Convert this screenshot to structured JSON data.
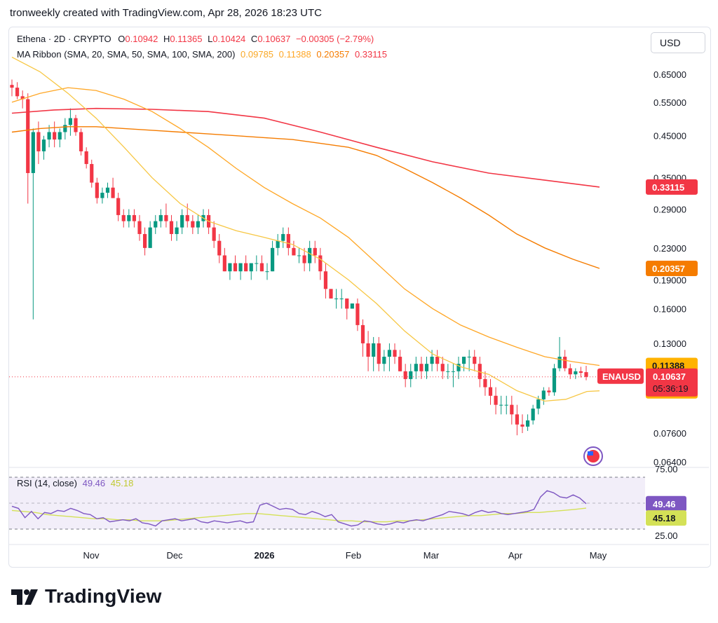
{
  "header": {
    "text": "tronweekly created with TradingView.com, Apr 28, 2026 18:23 UTC"
  },
  "legend": {
    "symbol": "Ethena · 2D · CRYPTO",
    "o_label": "O",
    "o_value": "0.10942",
    "h_label": "H",
    "h_value": "0.11365",
    "l_label": "L",
    "l_value": "0.10424",
    "c_label": "C",
    "c_value": "0.10637",
    "change": "−0.00305 (−2.79%)",
    "ma_title": "MA Ribbon (SMA, 20, SMA, 50, SMA, 100, SMA, 200)",
    "ma_values": [
      "0.09785",
      "0.11388",
      "0.20357",
      "0.33115"
    ],
    "rsi_title": "RSI (14, close)",
    "rsi_value": "49.46",
    "rsi_ma_value": "45.18"
  },
  "currency_button": "USD",
  "branding": "TradingView",
  "colors": {
    "up": "#089981",
    "down": "#f23645",
    "sma20": "#f7c744",
    "sma50": "#ffa726",
    "sma100": "#f57c00",
    "sma200": "#f23645",
    "rsi": "#7e57c2",
    "rsi_ma": "#d4e157"
  },
  "chart_data": {
    "type": "candlestick",
    "price_scale": "log",
    "price_ticks": [
      "0.65000",
      "0.55000",
      "0.45000",
      "0.35000",
      "0.29000",
      "0.23000",
      "0.19000",
      "0.16000",
      "0.13000",
      "0.11388",
      "0.09785",
      "0.07600",
      "0.06400"
    ],
    "price_axis_labels": [
      "0.65000",
      "0.55000",
      "0.45000",
      "0.35000",
      "0.29000",
      "0.23000",
      "0.19000",
      "0.16000",
      "0.13000",
      "0.07600",
      "0.06400"
    ],
    "time_labels": [
      "Nov",
      "Dec",
      "2026",
      "Feb",
      "Mar",
      "Apr",
      "May"
    ],
    "price_tags": [
      {
        "value": "0.33115",
        "price": 0.33115,
        "color": "#f23645",
        "text_color": "#ffffff"
      },
      {
        "value": "0.20357",
        "price": 0.20357,
        "color": "#f57c00",
        "text_color": "#ffffff"
      },
      {
        "value": "0.11388",
        "price": 0.11388,
        "color": "#ffb300",
        "text_color": "#131722"
      },
      {
        "value": "0.09785",
        "price": 0.09785,
        "color": "#ffb300",
        "text_color": "#131722"
      }
    ],
    "last_price": {
      "symbol": "ENAUSD",
      "value": "0.10637",
      "countdown": "05:36:19",
      "price": 0.10637
    },
    "candles": [
      [
        0.61,
        0.63,
        0.57,
        0.6
      ],
      [
        0.6,
        0.62,
        0.56,
        0.57
      ],
      [
        0.57,
        0.59,
        0.53,
        0.56
      ],
      [
        0.56,
        0.58,
        0.3,
        0.36
      ],
      [
        0.36,
        0.47,
        0.15,
        0.46
      ],
      [
        0.46,
        0.49,
        0.38,
        0.41
      ],
      [
        0.41,
        0.45,
        0.39,
        0.44
      ],
      [
        0.44,
        0.48,
        0.42,
        0.46
      ],
      [
        0.46,
        0.49,
        0.42,
        0.44
      ],
      [
        0.44,
        0.47,
        0.42,
        0.46
      ],
      [
        0.46,
        0.5,
        0.44,
        0.48
      ],
      [
        0.48,
        0.53,
        0.45,
        0.5
      ],
      [
        0.5,
        0.51,
        0.45,
        0.46
      ],
      [
        0.46,
        0.47,
        0.4,
        0.41
      ],
      [
        0.41,
        0.42,
        0.37,
        0.38
      ],
      [
        0.38,
        0.39,
        0.33,
        0.34
      ],
      [
        0.34,
        0.35,
        0.3,
        0.31
      ],
      [
        0.31,
        0.33,
        0.3,
        0.32
      ],
      [
        0.32,
        0.34,
        0.31,
        0.33
      ],
      [
        0.33,
        0.35,
        0.31,
        0.31
      ],
      [
        0.31,
        0.32,
        0.27,
        0.28
      ],
      [
        0.28,
        0.29,
        0.26,
        0.27
      ],
      [
        0.27,
        0.29,
        0.26,
        0.28
      ],
      [
        0.28,
        0.29,
        0.26,
        0.27
      ],
      [
        0.27,
        0.28,
        0.24,
        0.25
      ],
      [
        0.25,
        0.26,
        0.22,
        0.23
      ],
      [
        0.23,
        0.27,
        0.23,
        0.26
      ],
      [
        0.26,
        0.28,
        0.25,
        0.27
      ],
      [
        0.27,
        0.29,
        0.26,
        0.28
      ],
      [
        0.28,
        0.3,
        0.26,
        0.27
      ],
      [
        0.27,
        0.28,
        0.24,
        0.25
      ],
      [
        0.25,
        0.27,
        0.24,
        0.26
      ],
      [
        0.26,
        0.29,
        0.25,
        0.28
      ],
      [
        0.28,
        0.3,
        0.26,
        0.27
      ],
      [
        0.27,
        0.28,
        0.25,
        0.26
      ],
      [
        0.26,
        0.28,
        0.25,
        0.27
      ],
      [
        0.27,
        0.29,
        0.26,
        0.28
      ],
      [
        0.28,
        0.29,
        0.25,
        0.26
      ],
      [
        0.26,
        0.27,
        0.23,
        0.24
      ],
      [
        0.24,
        0.25,
        0.21,
        0.22
      ],
      [
        0.22,
        0.23,
        0.2,
        0.2
      ],
      [
        0.2,
        0.21,
        0.19,
        0.21
      ],
      [
        0.21,
        0.22,
        0.2,
        0.2
      ],
      [
        0.2,
        0.21,
        0.19,
        0.21
      ],
      [
        0.21,
        0.22,
        0.2,
        0.2
      ],
      [
        0.2,
        0.21,
        0.19,
        0.21
      ],
      [
        0.21,
        0.22,
        0.2,
        0.21
      ],
      [
        0.21,
        0.22,
        0.2,
        0.2
      ],
      [
        0.2,
        0.21,
        0.19,
        0.2
      ],
      [
        0.2,
        0.24,
        0.2,
        0.23
      ],
      [
        0.23,
        0.25,
        0.22,
        0.24
      ],
      [
        0.24,
        0.26,
        0.23,
        0.25
      ],
      [
        0.25,
        0.26,
        0.22,
        0.23
      ],
      [
        0.23,
        0.24,
        0.22,
        0.22
      ],
      [
        0.22,
        0.23,
        0.21,
        0.22
      ],
      [
        0.22,
        0.23,
        0.2,
        0.21
      ],
      [
        0.21,
        0.24,
        0.2,
        0.23
      ],
      [
        0.23,
        0.24,
        0.21,
        0.22
      ],
      [
        0.22,
        0.23,
        0.19,
        0.2
      ],
      [
        0.2,
        0.21,
        0.17,
        0.18
      ],
      [
        0.18,
        0.18,
        0.17,
        0.17
      ],
      [
        0.17,
        0.18,
        0.16,
        0.17
      ],
      [
        0.17,
        0.18,
        0.16,
        0.17
      ],
      [
        0.17,
        0.17,
        0.15,
        0.16
      ],
      [
        0.16,
        0.165,
        0.16,
        0.165
      ],
      [
        0.165,
        0.17,
        0.14,
        0.145
      ],
      [
        0.145,
        0.15,
        0.12,
        0.13
      ],
      [
        0.13,
        0.14,
        0.11,
        0.12
      ],
      [
        0.12,
        0.135,
        0.11,
        0.13
      ],
      [
        0.13,
        0.135,
        0.11,
        0.115
      ],
      [
        0.115,
        0.125,
        0.11,
        0.12
      ],
      [
        0.12,
        0.13,
        0.11,
        0.125
      ],
      [
        0.125,
        0.13,
        0.115,
        0.12
      ],
      [
        0.12,
        0.125,
        0.11,
        0.11
      ],
      [
        0.11,
        0.115,
        0.1,
        0.105
      ],
      [
        0.105,
        0.115,
        0.1,
        0.11
      ],
      [
        0.11,
        0.12,
        0.105,
        0.115
      ],
      [
        0.115,
        0.12,
        0.105,
        0.11
      ],
      [
        0.11,
        0.12,
        0.105,
        0.115
      ],
      [
        0.115,
        0.125,
        0.11,
        0.12
      ],
      [
        0.12,
        0.125,
        0.11,
        0.115
      ],
      [
        0.115,
        0.12,
        0.105,
        0.11
      ],
      [
        0.11,
        0.115,
        0.105,
        0.11
      ],
      [
        0.11,
        0.115,
        0.1,
        0.11
      ],
      [
        0.11,
        0.12,
        0.105,
        0.115
      ],
      [
        0.115,
        0.12,
        0.11,
        0.12
      ],
      [
        0.12,
        0.125,
        0.11,
        0.12
      ],
      [
        0.12,
        0.125,
        0.11,
        0.115
      ],
      [
        0.115,
        0.12,
        0.1,
        0.105
      ],
      [
        0.105,
        0.11,
        0.095,
        0.1
      ],
      [
        0.1,
        0.105,
        0.09,
        0.095
      ],
      [
        0.095,
        0.1,
        0.085,
        0.09
      ],
      [
        0.09,
        0.095,
        0.085,
        0.09
      ],
      [
        0.09,
        0.095,
        0.085,
        0.09
      ],
      [
        0.09,
        0.095,
        0.08,
        0.085
      ],
      [
        0.085,
        0.09,
        0.075,
        0.08
      ],
      [
        0.08,
        0.085,
        0.076,
        0.079
      ],
      [
        0.079,
        0.085,
        0.077,
        0.082
      ],
      [
        0.082,
        0.09,
        0.08,
        0.088
      ],
      [
        0.088,
        0.095,
        0.085,
        0.093
      ],
      [
        0.093,
        0.1,
        0.09,
        0.098
      ],
      [
        0.098,
        0.1,
        0.095,
        0.097
      ],
      [
        0.097,
        0.115,
        0.095,
        0.112
      ],
      [
        0.112,
        0.135,
        0.11,
        0.12
      ],
      [
        0.12,
        0.125,
        0.11,
        0.112
      ],
      [
        0.112,
        0.115,
        0.105,
        0.108
      ],
      [
        0.108,
        0.112,
        0.105,
        0.11
      ],
      [
        0.11,
        0.113,
        0.106,
        0.109
      ],
      [
        0.10942,
        0.11365,
        0.10424,
        0.10637
      ]
    ],
    "sma20": [
      [
        0,
        0.72
      ],
      [
        40,
        0.66
      ],
      [
        80,
        0.58
      ],
      [
        120,
        0.5
      ],
      [
        160,
        0.42
      ],
      [
        200,
        0.35
      ],
      [
        240,
        0.3
      ],
      [
        280,
        0.27
      ],
      [
        320,
        0.255
      ],
      [
        360,
        0.245
      ],
      [
        400,
        0.235
      ],
      [
        440,
        0.215
      ],
      [
        480,
        0.19
      ],
      [
        520,
        0.165
      ],
      [
        560,
        0.14
      ],
      [
        600,
        0.122
      ],
      [
        640,
        0.113
      ],
      [
        680,
        0.108
      ],
      [
        720,
        0.098
      ],
      [
        760,
        0.092
      ],
      [
        790,
        0.093
      ],
      [
        820,
        0.0975
      ],
      [
        838,
        0.09785
      ]
    ],
    "sma50": [
      [
        0,
        0.55
      ],
      [
        40,
        0.58
      ],
      [
        80,
        0.6
      ],
      [
        120,
        0.59
      ],
      [
        160,
        0.56
      ],
      [
        200,
        0.52
      ],
      [
        240,
        0.47
      ],
      [
        280,
        0.42
      ],
      [
        320,
        0.37
      ],
      [
        360,
        0.33
      ],
      [
        400,
        0.3
      ],
      [
        440,
        0.275
      ],
      [
        480,
        0.245
      ],
      [
        520,
        0.21
      ],
      [
        560,
        0.18
      ],
      [
        600,
        0.16
      ],
      [
        640,
        0.145
      ],
      [
        680,
        0.135
      ],
      [
        720,
        0.127
      ],
      [
        760,
        0.12
      ],
      [
        800,
        0.1165
      ],
      [
        838,
        0.11388
      ]
    ],
    "sma100": [
      [
        0,
        0.46
      ],
      [
        40,
        0.47
      ],
      [
        80,
        0.475
      ],
      [
        120,
        0.475
      ],
      [
        160,
        0.47
      ],
      [
        200,
        0.465
      ],
      [
        240,
        0.46
      ],
      [
        280,
        0.455
      ],
      [
        320,
        0.45
      ],
      [
        360,
        0.445
      ],
      [
        400,
        0.44
      ],
      [
        440,
        0.43
      ],
      [
        480,
        0.42
      ],
      [
        520,
        0.4
      ],
      [
        560,
        0.37
      ],
      [
        600,
        0.34
      ],
      [
        640,
        0.31
      ],
      [
        680,
        0.28
      ],
      [
        720,
        0.25
      ],
      [
        760,
        0.23
      ],
      [
        800,
        0.215
      ],
      [
        838,
        0.20357
      ]
    ],
    "sma200": [
      [
        0,
        0.515
      ],
      [
        60,
        0.525
      ],
      [
        120,
        0.53
      ],
      [
        200,
        0.527
      ],
      [
        280,
        0.52
      ],
      [
        360,
        0.5
      ],
      [
        440,
        0.46
      ],
      [
        520,
        0.42
      ],
      [
        600,
        0.385
      ],
      [
        680,
        0.36
      ],
      [
        760,
        0.345
      ],
      [
        838,
        0.33115
      ]
    ],
    "rsi": {
      "range": [
        25,
        75
      ],
      "bands": [
        "75.00",
        "25.00"
      ],
      "values": [
        47,
        45,
        36,
        42,
        35,
        41,
        40,
        43,
        42,
        45,
        43,
        40,
        39,
        35,
        36,
        32,
        33,
        34,
        33,
        35,
        31,
        30,
        28,
        33,
        34,
        35,
        33,
        34,
        35,
        32,
        31,
        33,
        32,
        31,
        32,
        33,
        31,
        32,
        48,
        50,
        47,
        44,
        45,
        44,
        40,
        39,
        42,
        40,
        37,
        39,
        32,
        30,
        28,
        29,
        33,
        32,
        30,
        29,
        30,
        32,
        31,
        33,
        34,
        33,
        35,
        37,
        39,
        42,
        41,
        40,
        38,
        41,
        43,
        41,
        42,
        40,
        39,
        40,
        41,
        42,
        44,
        56,
        62,
        60,
        56,
        55,
        58,
        55,
        49.46
      ],
      "ma": [
        43,
        42,
        41,
        39,
        38,
        37,
        36,
        35,
        35,
        34,
        34,
        33,
        33,
        33,
        34,
        35,
        36,
        37,
        38,
        39,
        40,
        40,
        39,
        38,
        37,
        36,
        35,
        34,
        33,
        33,
        32,
        32,
        32,
        33,
        33,
        34,
        35,
        36,
        37,
        38,
        38,
        39,
        40,
        40,
        41,
        41,
        42,
        43,
        44,
        45.18
      ]
    }
  }
}
